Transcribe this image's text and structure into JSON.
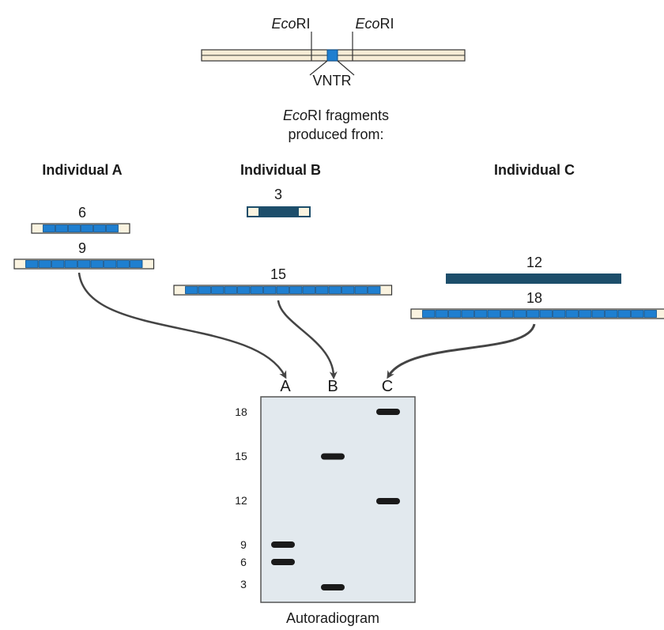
{
  "header": {
    "site_left": {
      "italic": "Eco",
      "rest": "RI"
    },
    "site_right": {
      "italic": "Eco",
      "rest": "RI"
    },
    "vntr_label": "VNTR",
    "subtitle_line1_italic": "Eco",
    "subtitle_line1_rest": "RI fragments",
    "subtitle_line2": "produced from:"
  },
  "individuals": [
    {
      "name": "Individual A",
      "fragments": [
        {
          "label": "6",
          "repeats": 6
        },
        {
          "label": "9",
          "repeats": 9
        }
      ]
    },
    {
      "name": "Individual B",
      "fragments": [
        {
          "label": "3",
          "repeats": 3
        },
        {
          "label": "15",
          "repeats": 15
        }
      ]
    },
    {
      "name": "Individual C",
      "fragments": [
        {
          "label": "12",
          "repeats": 12
        },
        {
          "label": "18",
          "repeats": 18
        }
      ]
    }
  ],
  "gel": {
    "lanes": [
      "A",
      "B",
      "C"
    ],
    "size_markers": [
      "18",
      "15",
      "12",
      "9",
      "6",
      "3"
    ],
    "bands": [
      {
        "lane": "A",
        "size": 9
      },
      {
        "lane": "A",
        "size": 6
      },
      {
        "lane": "B",
        "size": 15
      },
      {
        "lane": "B",
        "size": 3
      },
      {
        "lane": "C",
        "size": 18
      },
      {
        "lane": "C",
        "size": 12
      }
    ],
    "caption": "Autoradiogram"
  },
  "colors": {
    "repeat_fill": "#1f7fd0",
    "repeat_border": "#0d4f8a",
    "solid_fragment": "#1d4e6b",
    "flank": "#faf3e0",
    "dna_strand": "#f6ecd6",
    "gel_background": "#e2e9ee",
    "band": "#1a1a1a",
    "arrow": "#444444"
  }
}
